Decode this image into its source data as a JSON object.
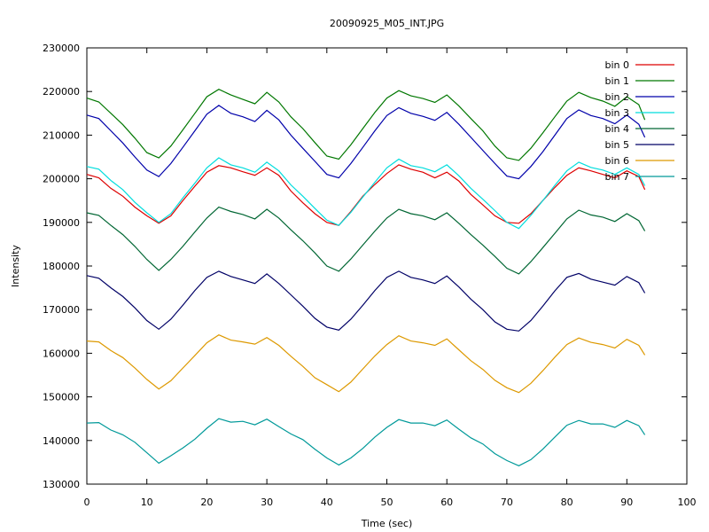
{
  "chart_data": {
    "type": "line",
    "title": "20090925_M05_INT.JPG",
    "xlabel": "Time (sec)",
    "ylabel": "Intensity",
    "xlim": [
      0,
      100
    ],
    "ylim": [
      130000,
      230000
    ],
    "xticks": [
      0,
      10,
      20,
      30,
      40,
      50,
      60,
      70,
      80,
      90,
      100
    ],
    "yticks": [
      130000,
      140000,
      150000,
      160000,
      170000,
      180000,
      190000,
      200000,
      210000,
      220000,
      230000
    ],
    "grid": false,
    "legend_position": "top-right",
    "x": [
      0,
      2,
      4,
      6,
      8,
      10,
      12,
      14,
      16,
      18,
      20,
      22,
      24,
      26,
      28,
      30,
      32,
      34,
      36,
      38,
      40,
      42,
      44,
      46,
      48,
      50,
      52,
      54,
      56,
      58,
      60,
      62,
      64,
      66,
      68,
      70,
      72,
      74,
      76,
      78,
      80,
      82,
      84,
      86,
      88,
      90,
      92,
      93
    ],
    "series": [
      {
        "name": "bin 0",
        "color": "#dd0000",
        "values": [
          201000,
          200200,
          197800,
          196000,
          193500,
          191500,
          189800,
          191500,
          195000,
          198300,
          201500,
          203000,
          202500,
          201600,
          200800,
          202500,
          200800,
          197200,
          194500,
          192000,
          190000,
          189300,
          192500,
          196000,
          198700,
          201200,
          203200,
          202200,
          201500,
          200200,
          201500,
          199500,
          196400,
          194000,
          191500,
          190000,
          189800,
          192000,
          195000,
          198000,
          200800,
          202500,
          201800,
          201000,
          200200,
          201800,
          200500,
          197500
        ]
      },
      {
        "name": "bin 1",
        "color": "#007700",
        "values": [
          218500,
          217600,
          215000,
          212400,
          209300,
          206000,
          204800,
          207500,
          211200,
          215000,
          218800,
          220500,
          219200,
          218200,
          217200,
          219800,
          217600,
          214200,
          211500,
          208300,
          205200,
          204500,
          207800,
          211500,
          215200,
          218500,
          220200,
          219000,
          218400,
          217500,
          219200,
          216700,
          213800,
          211000,
          207500,
          204800,
          204200,
          207000,
          210500,
          214200,
          217800,
          219800,
          218600,
          217800,
          216600,
          218800,
          217000,
          213500
        ]
      },
      {
        "name": "bin 2",
        "color": "#0000aa",
        "values": [
          214600,
          213800,
          211000,
          208200,
          205000,
          202000,
          200500,
          203500,
          207200,
          211000,
          214800,
          216800,
          215000,
          214200,
          213100,
          215700,
          213500,
          210000,
          207000,
          204000,
          201000,
          200200,
          203500,
          207200,
          211000,
          214500,
          216300,
          215000,
          214300,
          213400,
          215200,
          212500,
          209500,
          206500,
          203500,
          200600,
          200000,
          202800,
          206200,
          210000,
          213800,
          215800,
          214500,
          213800,
          212600,
          214600,
          212500,
          209500
        ]
      },
      {
        "name": "bin 3",
        "color": "#00dddd",
        "values": [
          202800,
          202200,
          199600,
          197500,
          194600,
          192200,
          190000,
          192000,
          195600,
          199000,
          202500,
          204800,
          203200,
          202500,
          201500,
          203800,
          201800,
          198600,
          196000,
          193200,
          190500,
          189300,
          192300,
          195800,
          199200,
          202500,
          204500,
          203000,
          202500,
          201600,
          203200,
          200700,
          197800,
          195300,
          192700,
          190000,
          188600,
          191600,
          195000,
          198500,
          201800,
          203800,
          202600,
          202000,
          201000,
          202500,
          201000,
          198400
        ]
      },
      {
        "name": "bin 4",
        "color": "#006633",
        "values": [
          192200,
          191600,
          189300,
          187200,
          184500,
          181500,
          179000,
          181500,
          184500,
          187800,
          191000,
          193500,
          192500,
          191800,
          190800,
          193000,
          191000,
          188300,
          185800,
          183000,
          180000,
          178800,
          181600,
          184800,
          188000,
          191000,
          193000,
          192000,
          191500,
          190600,
          192200,
          189800,
          187200,
          184800,
          182200,
          179500,
          178200,
          181000,
          184200,
          187500,
          190800,
          192800,
          191700,
          191200,
          190200,
          192000,
          190400,
          188000
        ]
      },
      {
        "name": "bin 5",
        "color": "#000066",
        "values": [
          177800,
          177200,
          175000,
          173000,
          170400,
          167500,
          165500,
          167800,
          171000,
          174400,
          177400,
          178800,
          177600,
          176800,
          176000,
          178200,
          176000,
          173400,
          170800,
          168000,
          166000,
          165300,
          167800,
          171000,
          174400,
          177400,
          178800,
          177400,
          176800,
          176000,
          177700,
          175200,
          172400,
          170000,
          167200,
          165500,
          165100,
          167500,
          170800,
          174300,
          177400,
          178300,
          177000,
          176300,
          175600,
          177600,
          176200,
          173800
        ]
      },
      {
        "name": "bin 6",
        "color": "#dd9900",
        "values": [
          162800,
          162600,
          160600,
          159000,
          156600,
          154000,
          151800,
          153700,
          156600,
          159500,
          162400,
          164200,
          163000,
          162600,
          162100,
          163600,
          161800,
          159300,
          157000,
          154400,
          152800,
          151200,
          153400,
          156400,
          159400,
          162000,
          164000,
          162800,
          162400,
          161800,
          163300,
          160800,
          158300,
          156300,
          153800,
          152100,
          151000,
          153100,
          156000,
          159100,
          162000,
          163500,
          162500,
          162000,
          161200,
          163200,
          161800,
          159600
        ]
      },
      {
        "name": "bin 7",
        "color": "#009999",
        "values": [
          144000,
          144100,
          142400,
          141300,
          139600,
          137200,
          134800,
          136500,
          138300,
          140300,
          142800,
          145000,
          144200,
          144400,
          143600,
          144900,
          143200,
          141500,
          140200,
          138000,
          136000,
          134400,
          136000,
          138200,
          140800,
          143000,
          144800,
          144000,
          144000,
          143400,
          144700,
          142600,
          140600,
          139200,
          137000,
          135400,
          134200,
          135600,
          138000,
          140800,
          143500,
          144600,
          143800,
          143800,
          143000,
          144600,
          143400,
          141300
        ]
      }
    ]
  }
}
